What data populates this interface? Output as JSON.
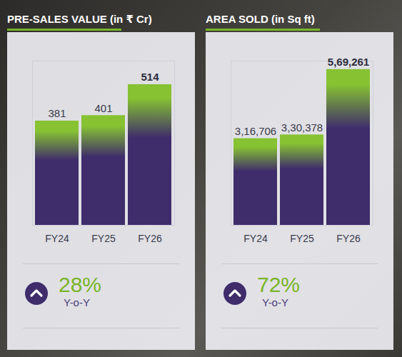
{
  "chart_data": [
    {
      "type": "bar",
      "title": "PRE-SALES VALUE (in ₹ Cr)",
      "categories": [
        "FY24",
        "FY25",
        "FY26"
      ],
      "values": [
        381,
        401,
        514
      ],
      "color": "#3f2c6b",
      "ylim": [
        0,
        600
      ],
      "data_labels": true,
      "tick_labels": "x",
      "growth": {
        "value": 28,
        "label": "28%",
        "text": "Y-o-Y"
      }
    },
    {
      "type": "bar",
      "title": "AREA SOLD (in Sq ft)",
      "categories": [
        "FY24",
        "FY25",
        "FY26"
      ],
      "values": [
        316706,
        330378,
        569261
      ],
      "value_labels": [
        "3,16,706",
        "3,30,378",
        "5,69,261"
      ],
      "color": "#3f2c6b",
      "ylim": [
        0,
        600000
      ],
      "data_labels": true,
      "tick_labels": "x",
      "growth": {
        "value": 72,
        "label": "72%",
        "text": "Y-o-Y"
      }
    }
  ]
}
